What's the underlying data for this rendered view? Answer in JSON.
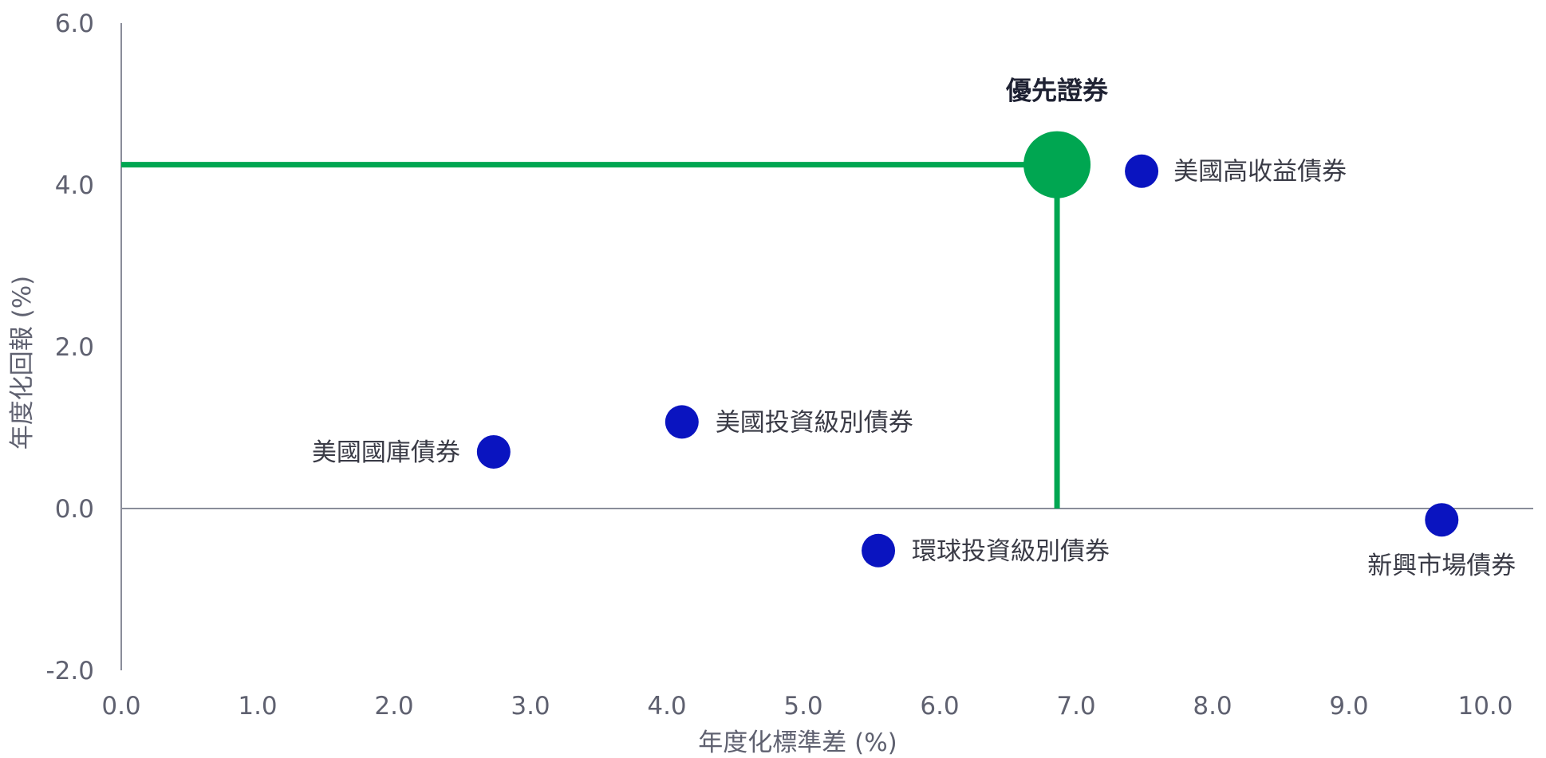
{
  "chart_data": {
    "type": "scatter",
    "title": "",
    "xlabel": "年度化標準差 (%)",
    "ylabel": "年度化回報 (%)",
    "xlim": [
      0,
      10.4
    ],
    "ylim": [
      -2,
      6
    ],
    "x_ticks": [
      "0.0",
      "1.0",
      "2.0",
      "3.0",
      "4.0",
      "5.0",
      "6.0",
      "7.0",
      "8.0",
      "9.0",
      "10.0"
    ],
    "y_ticks": [
      "-2.0",
      "0.0",
      "2.0",
      "4.0",
      "6.0"
    ],
    "grid": false,
    "legend": "none",
    "colors": {
      "highlight": "#00a651",
      "points": "#0a14c0",
      "axis": "#8a8d9a"
    },
    "highlight": {
      "name": "優先證券",
      "x": 6.86,
      "y": 4.25
    },
    "points": [
      {
        "name": "美國高收益債券",
        "x": 7.48,
        "y": 4.17
      },
      {
        "name": "美國投資級別債券",
        "x": 4.11,
        "y": 1.07
      },
      {
        "name": "美國國庫債券",
        "x": 2.73,
        "y": 0.7
      },
      {
        "name": "環球投資級別債券",
        "x": 5.55,
        "y": -0.52
      },
      {
        "name": "新興市場債券",
        "x": 9.68,
        "y": -0.14
      }
    ]
  }
}
